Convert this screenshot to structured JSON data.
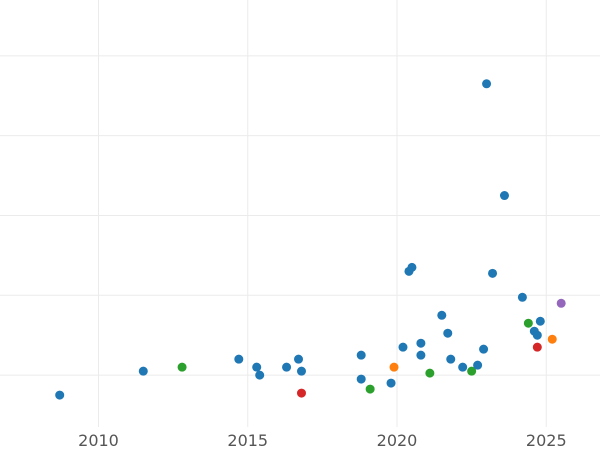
{
  "chart_data": {
    "type": "scatter",
    "title": "",
    "xlabel": "",
    "ylabel": "",
    "xlim": [
      2006.7,
      2026.8
    ],
    "ylim": [
      -0.3,
      10.4
    ],
    "xticks": [
      2010,
      2015,
      2020,
      2025
    ],
    "xtick_labels": [
      "2010",
      "2015",
      "2020",
      "2025"
    ],
    "yticks": [
      1,
      3,
      5,
      7,
      9
    ],
    "grid": true,
    "legend": "none",
    "colors": {
      "blue": "#1f77b4",
      "orange": "#ff7f0e",
      "green": "#2ca02c",
      "red": "#d62728",
      "purple": "#9467bd"
    },
    "points": [
      {
        "x": 2008.7,
        "y": 0.5,
        "color": "blue"
      },
      {
        "x": 2011.5,
        "y": 1.1,
        "color": "blue"
      },
      {
        "x": 2012.8,
        "y": 1.2,
        "color": "green"
      },
      {
        "x": 2014.7,
        "y": 1.4,
        "color": "blue"
      },
      {
        "x": 2015.3,
        "y": 1.2,
        "color": "blue"
      },
      {
        "x": 2015.4,
        "y": 1.0,
        "color": "blue"
      },
      {
        "x": 2016.3,
        "y": 1.2,
        "color": "blue"
      },
      {
        "x": 2016.7,
        "y": 1.4,
        "color": "blue"
      },
      {
        "x": 2016.8,
        "y": 1.1,
        "color": "blue"
      },
      {
        "x": 2016.8,
        "y": 0.55,
        "color": "red"
      },
      {
        "x": 2018.8,
        "y": 1.5,
        "color": "blue"
      },
      {
        "x": 2018.8,
        "y": 0.9,
        "color": "blue"
      },
      {
        "x": 2019.1,
        "y": 0.65,
        "color": "green"
      },
      {
        "x": 2019.8,
        "y": 0.8,
        "color": "blue"
      },
      {
        "x": 2019.9,
        "y": 1.2,
        "color": "orange"
      },
      {
        "x": 2020.2,
        "y": 1.7,
        "color": "blue"
      },
      {
        "x": 2020.4,
        "y": 3.6,
        "color": "blue"
      },
      {
        "x": 2020.5,
        "y": 3.7,
        "color": "blue"
      },
      {
        "x": 2020.8,
        "y": 1.5,
        "color": "blue"
      },
      {
        "x": 2020.8,
        "y": 1.8,
        "color": "blue"
      },
      {
        "x": 2021.1,
        "y": 1.05,
        "color": "green"
      },
      {
        "x": 2021.5,
        "y": 2.5,
        "color": "blue"
      },
      {
        "x": 2021.7,
        "y": 2.05,
        "color": "blue"
      },
      {
        "x": 2021.8,
        "y": 1.4,
        "color": "blue"
      },
      {
        "x": 2022.2,
        "y": 1.2,
        "color": "blue"
      },
      {
        "x": 2022.5,
        "y": 1.1,
        "color": "green"
      },
      {
        "x": 2022.7,
        "y": 1.25,
        "color": "blue"
      },
      {
        "x": 2022.9,
        "y": 1.65,
        "color": "blue"
      },
      {
        "x": 2023.0,
        "y": 8.3,
        "color": "blue"
      },
      {
        "x": 2023.2,
        "y": 3.55,
        "color": "blue"
      },
      {
        "x": 2023.6,
        "y": 5.5,
        "color": "blue"
      },
      {
        "x": 2024.2,
        "y": 2.95,
        "color": "blue"
      },
      {
        "x": 2024.4,
        "y": 2.3,
        "color": "green"
      },
      {
        "x": 2024.6,
        "y": 2.1,
        "color": "blue"
      },
      {
        "x": 2024.7,
        "y": 2.0,
        "color": "blue"
      },
      {
        "x": 2024.7,
        "y": 1.7,
        "color": "red"
      },
      {
        "x": 2024.8,
        "y": 2.35,
        "color": "blue"
      },
      {
        "x": 2025.2,
        "y": 1.9,
        "color": "orange"
      },
      {
        "x": 2025.5,
        "y": 2.8,
        "color": "purple"
      }
    ]
  }
}
